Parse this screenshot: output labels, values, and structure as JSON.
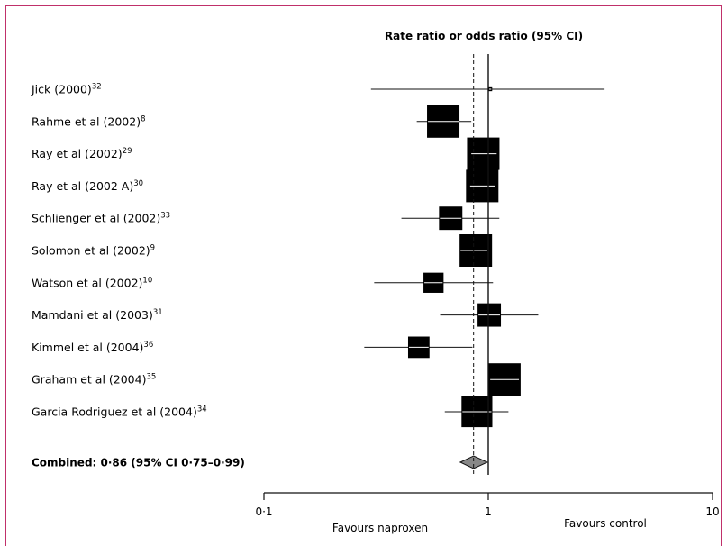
{
  "chart_data": {
    "type": "forest",
    "title": "Rate ratio or odds ratio (95% CI)",
    "x_scale": "log",
    "xlim": [
      0.1,
      10
    ],
    "x_ticks": [
      {
        "value": 0.1,
        "label": "0·1"
      },
      {
        "value": 1,
        "label": "1"
      },
      {
        "value": 10,
        "label": "10"
      }
    ],
    "reference_line": 1,
    "combined_line": 0.86,
    "favours_left": "Favours naproxen",
    "favours_right": "Favours control",
    "studies": [
      {
        "label": "Jick (2000)",
        "ref": "32",
        "estimate": 1.02,
        "ci_low": 0.3,
        "ci_high": 3.3,
        "weight": 0.12
      },
      {
        "label": "Rahme et al (2002)",
        "ref": "8",
        "estimate": 0.63,
        "ci_low": 0.48,
        "ci_high": 0.84,
        "weight": 1.0
      },
      {
        "label": "Ray et al (2002)",
        "ref": "29",
        "estimate": 0.95,
        "ci_low": 0.84,
        "ci_high": 1.09,
        "weight": 1.0
      },
      {
        "label": "Ray et al (2002 A)",
        "ref": "30",
        "estimate": 0.94,
        "ci_low": 0.83,
        "ci_high": 1.07,
        "weight": 1.0
      },
      {
        "label": "Schlienger et al (2002)",
        "ref": "33",
        "estimate": 0.68,
        "ci_low": 0.41,
        "ci_high": 1.12,
        "weight": 0.72
      },
      {
        "label": "Solomon et al (2002)",
        "ref": "9",
        "estimate": 0.88,
        "ci_low": 0.75,
        "ci_high": 0.99,
        "weight": 1.0
      },
      {
        "label": "Watson et al (2002)",
        "ref": "10",
        "estimate": 0.57,
        "ci_low": 0.31,
        "ci_high": 1.05,
        "weight": 0.62
      },
      {
        "label": "Mamdani et al (2003)",
        "ref": "31",
        "estimate": 1.01,
        "ci_low": 0.61,
        "ci_high": 1.67,
        "weight": 0.72
      },
      {
        "label": "Kimmel et al (2004)",
        "ref": "36",
        "estimate": 0.49,
        "ci_low": 0.28,
        "ci_high": 0.85,
        "weight": 0.66
      },
      {
        "label": "Graham et al (2004)",
        "ref": "35",
        "estimate": 1.18,
        "ci_low": 1.02,
        "ci_high": 1.37,
        "weight": 1.0
      },
      {
        "label": "Garcia Rodriguez et al (2004)",
        "ref": "34",
        "estimate": 0.89,
        "ci_low": 0.64,
        "ci_high": 1.23,
        "weight": 0.95
      }
    ],
    "combined": {
      "label": "Combined: 0·86 (95% CI 0·75–0·99)",
      "estimate": 0.86,
      "ci_low": 0.75,
      "ci_high": 0.99
    }
  }
}
